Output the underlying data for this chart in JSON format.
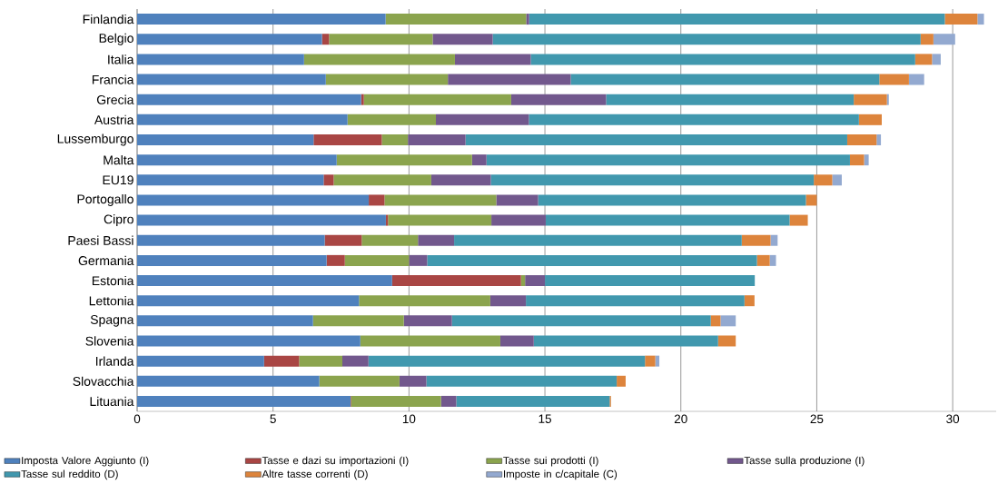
{
  "chart_data": {
    "type": "bar",
    "orientation": "horizontal",
    "stacked": true,
    "categories": [
      "Finlandia",
      "Belgio",
      "Italia",
      "Francia",
      "Grecia",
      "Austria",
      "Lussemburgo",
      "Malta",
      "EU19",
      "Portogallo",
      "Cipro",
      "Paesi Bassi",
      "Germania",
      "Estonia",
      "Lettonia",
      "Spagna",
      "Slovenia",
      "Irlanda",
      "Slovacchia",
      "Lituania"
    ],
    "series": [
      {
        "name": "Imposta Valore Aggiunto (I)",
        "color": "#4f81bd",
        "values": [
          9.14,
          6.8,
          6.14,
          6.94,
          8.24,
          7.74,
          6.49,
          7.34,
          6.86,
          8.52,
          9.15,
          6.9,
          6.97,
          9.38,
          8.16,
          6.47,
          8.21,
          4.67,
          6.7,
          7.85
        ]
      },
      {
        "name": "Tasse e dazi su importazioni (I)",
        "color": "#a94644",
        "values": [
          null,
          0.26,
          null,
          null,
          0.1,
          null,
          2.51,
          null,
          0.37,
          0.58,
          0.08,
          1.36,
          0.67,
          4.74,
          null,
          null,
          null,
          1.29,
          null,
          0.02
        ]
      },
      {
        "name": "Tasse sui prodotti (I)",
        "color": "#8ba44e",
        "values": [
          5.17,
          3.81,
          5.55,
          4.49,
          5.42,
          3.25,
          0.96,
          4.98,
          3.59,
          4.11,
          3.8,
          2.07,
          2.36,
          0.15,
          4.83,
          3.34,
          5.15,
          1.59,
          2.95,
          3.31
        ]
      },
      {
        "name": "Tasse sulla produzione (I)",
        "color": "#72588d",
        "values": [
          0.11,
          2.21,
          2.79,
          4.52,
          3.49,
          3.42,
          2.12,
          0.53,
          2.19,
          1.54,
          2.0,
          1.33,
          0.67,
          0.73,
          1.31,
          1.77,
          1.23,
          0.96,
          0.99,
          0.56
        ]
      },
      {
        "name": "Tasse sul reddito (D)",
        "color": "#4198ae",
        "values": [
          15.29,
          15.74,
          14.14,
          11.35,
          9.11,
          12.14,
          14.04,
          13.37,
          11.88,
          9.85,
          8.97,
          10.58,
          12.13,
          7.72,
          8.04,
          9.52,
          6.78,
          10.17,
          7.0,
          5.64
        ]
      },
      {
        "name": "Altre tasse correnti (D)",
        "color": "#dd843c",
        "values": [
          1.2,
          0.47,
          0.62,
          1.09,
          1.22,
          0.84,
          1.08,
          0.52,
          0.68,
          0.4,
          0.67,
          1.06,
          0.47,
          null,
          0.37,
          0.36,
          0.65,
          0.38,
          0.33,
          0.05
        ]
      },
      {
        "name": "Imposte in c/capitale (C)",
        "color": "#93a9d0",
        "values": [
          0.24,
          0.8,
          0.32,
          0.56,
          0.07,
          null,
          0.16,
          0.17,
          0.35,
          null,
          null,
          0.26,
          0.23,
          null,
          null,
          0.56,
          null,
          0.15,
          null,
          null
        ]
      }
    ],
    "xlim": [
      0,
      31.6
    ],
    "xticks": [
      0,
      5,
      10,
      15,
      20,
      25,
      30
    ],
    "grid": "x",
    "legend": "bottom"
  }
}
